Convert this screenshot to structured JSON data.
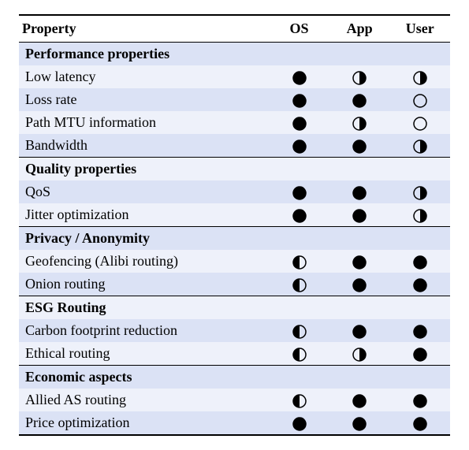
{
  "columns": [
    "Property",
    "OS",
    "App",
    "User"
  ],
  "colors": {
    "stripe_a": "#dbe2f5",
    "stripe_b": "#eef1fa",
    "rule": "#000000",
    "circle_stroke": "#000000",
    "circle_fill": "#000000",
    "background": "#ffffff"
  },
  "typography": {
    "font_family": "Times New Roman",
    "font_size_pt": 14,
    "header_weight": 700,
    "section_weight": 700
  },
  "glyph_legend": {
    "full": "filled circle",
    "half_right": "half-filled (right black)",
    "half_left": "half-filled (left black)",
    "empty": "open circle"
  },
  "sections": [
    {
      "title": "Performance properties",
      "rows": [
        {
          "label": "Low latency",
          "os": "full",
          "app": "half_right",
          "user": "half_right"
        },
        {
          "label": "Loss rate",
          "os": "full",
          "app": "full",
          "user": "empty"
        },
        {
          "label": "Path MTU information",
          "os": "full",
          "app": "half_right",
          "user": "empty"
        },
        {
          "label": "Bandwidth",
          "os": "full",
          "app": "full",
          "user": "half_right"
        }
      ]
    },
    {
      "title": "Quality properties",
      "rows": [
        {
          "label": "QoS",
          "os": "full",
          "app": "full",
          "user": "half_right"
        },
        {
          "label": "Jitter optimization",
          "os": "full",
          "app": "full",
          "user": "half_right"
        }
      ]
    },
    {
      "title": "Privacy / Anonymity",
      "rows": [
        {
          "label": "Geofencing (Alibi routing)",
          "os": "half_left",
          "app": "full",
          "user": "full"
        },
        {
          "label": "Onion routing",
          "os": "half_left",
          "app": "full",
          "user": "full"
        }
      ]
    },
    {
      "title": "ESG Routing",
      "rows": [
        {
          "label": "Carbon footprint reduction",
          "os": "half_left",
          "app": "full",
          "user": "full"
        },
        {
          "label": "Ethical routing",
          "os": "half_left",
          "app": "half_right",
          "user": "full"
        }
      ]
    },
    {
      "title": "Economic aspects",
      "rows": [
        {
          "label": "Allied AS routing",
          "os": "half_left",
          "app": "full",
          "user": "full"
        },
        {
          "label": "Price optimization",
          "os": "full",
          "app": "full",
          "user": "full"
        }
      ]
    }
  ]
}
